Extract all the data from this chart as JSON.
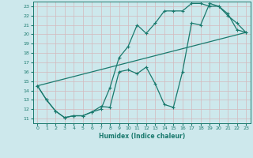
{
  "xlabel": "Humidex (Indice chaleur)",
  "xlim": [
    -0.5,
    23.5
  ],
  "ylim": [
    10.5,
    23.5
  ],
  "yticks": [
    11,
    12,
    13,
    14,
    15,
    16,
    17,
    18,
    19,
    20,
    21,
    22,
    23
  ],
  "xticks": [
    0,
    1,
    2,
    3,
    4,
    5,
    6,
    7,
    8,
    9,
    10,
    11,
    12,
    13,
    14,
    15,
    16,
    17,
    18,
    19,
    20,
    21,
    22,
    23
  ],
  "bg_color": "#cde8ec",
  "grid_color": "#c0d8dc",
  "line_color": "#1a7a6e",
  "line1_x": [
    0,
    1,
    2,
    3,
    4,
    5,
    6,
    7,
    8,
    9,
    10,
    11,
    12,
    13,
    14,
    15,
    16,
    17,
    18,
    19,
    20,
    21,
    22,
    23
  ],
  "line1_y": [
    14.5,
    13.0,
    11.8,
    11.1,
    11.3,
    11.3,
    11.7,
    12.0,
    14.3,
    17.5,
    18.7,
    21.0,
    20.1,
    21.2,
    22.5,
    22.5,
    22.5,
    23.3,
    23.3,
    23.0,
    23.0,
    22.2,
    20.5,
    20.2
  ],
  "line2_x": [
    0,
    1,
    2,
    3,
    4,
    5,
    6,
    7,
    8,
    9,
    10,
    11,
    12,
    13,
    14,
    15,
    16,
    17,
    18,
    19,
    20,
    21,
    22,
    23
  ],
  "line2_y": [
    14.5,
    13.0,
    11.8,
    11.1,
    11.3,
    11.3,
    11.7,
    12.3,
    12.2,
    16.0,
    16.2,
    15.8,
    16.5,
    14.7,
    12.5,
    12.2,
    16.0,
    21.2,
    21.0,
    23.3,
    23.0,
    22.0,
    21.2,
    20.2
  ],
  "line3_x": [
    0,
    23
  ],
  "line3_y": [
    14.5,
    20.2
  ]
}
